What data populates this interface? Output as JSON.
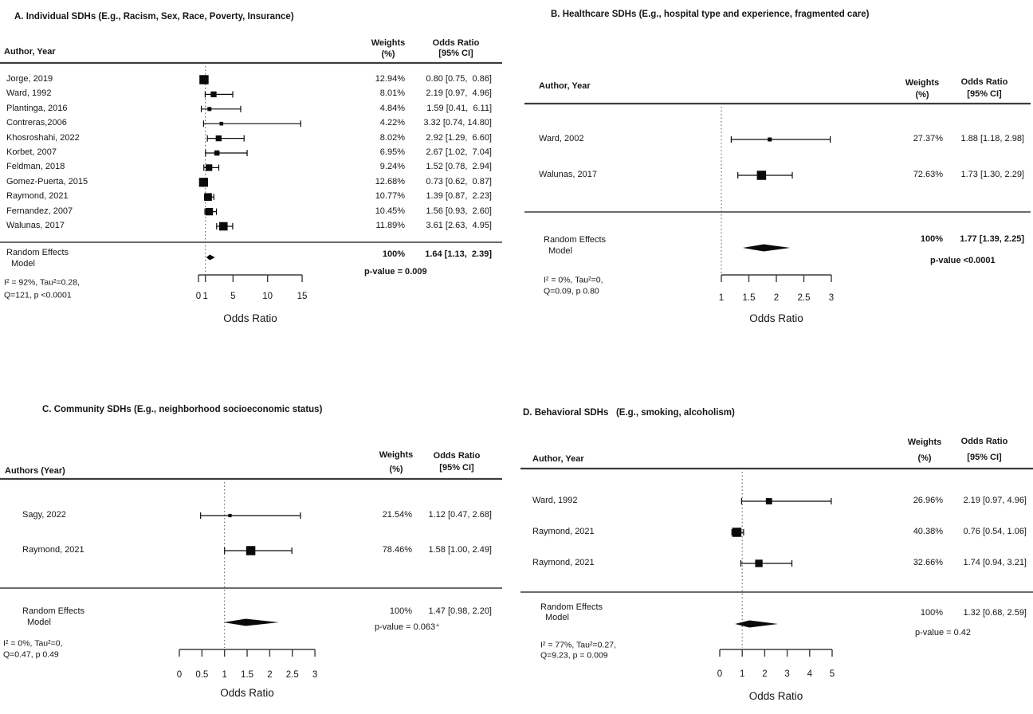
{
  "figure": {
    "background": "#ffffff",
    "text_color": "#161616",
    "line_color": "#3c3c3c",
    "marker_color": "#0a0a0a"
  },
  "chart_data": [
    {
      "type": "forest",
      "panel_id": "A",
      "title": "A. Individual SDHs (E.g., Racism, Sex, Race, Poverty, Insurance)",
      "author_header": "Author, Year",
      "weights_header": [
        "Weights",
        "(%)"
      ],
      "or_header": [
        "Odds Ratio",
        "[95% CI]"
      ],
      "xlabel": "Odds Ratio",
      "ref_line": 1,
      "axis": {
        "range": [
          0,
          15
        ],
        "tick_values": [
          0,
          1,
          5,
          10,
          15
        ],
        "ticks": [
          "0",
          "1",
          "5",
          "10",
          "15"
        ]
      },
      "studies": [
        {
          "label": "Jorge, 2019",
          "weight": "12.94%",
          "weight_value": 12.94,
          "or": 0.8,
          "ci_low": 0.75,
          "ci_high": 0.86,
          "or_text": "0.80 [0.75,  0.86]"
        },
        {
          "label": "Ward, 1992",
          "weight": "8.01%",
          "weight_value": 8.01,
          "or": 2.19,
          "ci_low": 0.97,
          "ci_high": 4.96,
          "or_text": "2.19 [0.97,  4.96]"
        },
        {
          "label": "Plantinga, 2016",
          "weight": "4.84%",
          "weight_value": 4.84,
          "or": 1.59,
          "ci_low": 0.41,
          "ci_high": 6.11,
          "or_text": "1.59 [0.41,  6.11]"
        },
        {
          "label": "Contreras,2006",
          "weight": "4.22%",
          "weight_value": 4.22,
          "or": 3.32,
          "ci_low": 0.74,
          "ci_high": 14.8,
          "or_text": "3.32 [0.74, 14.80]"
        },
        {
          "label": "Khosroshahi, 2022",
          "weight": "8.02%",
          "weight_value": 8.02,
          "or": 2.92,
          "ci_low": 1.29,
          "ci_high": 6.6,
          "or_text": "2.92 [1.29,  6.60]"
        },
        {
          "label": "Korbet, 2007",
          "weight": "6.95%",
          "weight_value": 6.95,
          "or": 2.67,
          "ci_low": 1.02,
          "ci_high": 7.04,
          "or_text": "2.67 [1.02,  7.04]"
        },
        {
          "label": "Feldman, 2018",
          "weight": "9.24%",
          "weight_value": 9.24,
          "or": 1.52,
          "ci_low": 0.78,
          "ci_high": 2.94,
          "or_text": "1.52 [0.78,  2.94]"
        },
        {
          "label": "Gomez-Puerta, 2015",
          "weight": "12.68%",
          "weight_value": 12.68,
          "or": 0.73,
          "ci_low": 0.62,
          "ci_high": 0.87,
          "or_text": "0.73 [0.62,  0.87]"
        },
        {
          "label": "Raymond, 2021",
          "weight": "10.77%",
          "weight_value": 10.77,
          "or": 1.39,
          "ci_low": 0.87,
          "ci_high": 2.23,
          "or_text": "1.39 [0.87,  2.23]"
        },
        {
          "label": "Fernandez, 2007",
          "weight": "10.45%",
          "weight_value": 10.45,
          "or": 1.56,
          "ci_low": 0.93,
          "ci_high": 2.6,
          "or_text": "1.56 [0.93,  2.60]"
        },
        {
          "label": "Walunas, 2017",
          "weight": "11.89%",
          "weight_value": 11.89,
          "or": 3.61,
          "ci_low": 2.63,
          "ci_high": 4.95,
          "or_text": "3.61 [2.63,  4.95]"
        }
      ],
      "summary": {
        "label_lines": [
          "Random Effects",
          "Model"
        ],
        "weight": "100%",
        "or": 1.64,
        "ci_low": 1.13,
        "ci_high": 2.39,
        "or_text": "1.64 [1.13,  2.39]",
        "p_value": "p-value = 0.009",
        "bold": true
      },
      "heterogeneity": [
        "I² = 92%, Tau²=0.28,",
        "Q=121, p <0.0001"
      ]
    },
    {
      "type": "forest",
      "panel_id": "B",
      "title": "B. Healthcare SDHs (E.g., hospital type and experience, fragmented care)",
      "author_header": "Author, Year",
      "weights_header": [
        "Weights",
        "(%)"
      ],
      "or_header": [
        "Odds Ratio",
        "[95% CI]"
      ],
      "xlabel": "Odds Ratio",
      "ref_line": 1,
      "axis": {
        "range": [
          1,
          3
        ],
        "tick_values": [
          1,
          1.5,
          2,
          2.5,
          3
        ],
        "ticks": [
          "1",
          "1.5",
          "2",
          "2.5",
          "3"
        ]
      },
      "studies": [
        {
          "label": "Ward, 2002",
          "weight": "27.37%",
          "weight_value": 27.37,
          "or": 1.88,
          "ci_low": 1.18,
          "ci_high": 2.98,
          "or_text": "1.88 [1.18, 2.98]"
        },
        {
          "label": "Walunas, 2017",
          "weight": "72.63%",
          "weight_value": 72.63,
          "or": 1.73,
          "ci_low": 1.3,
          "ci_high": 2.29,
          "or_text": "1.73 [1.30, 2.29]"
        }
      ],
      "summary": {
        "label_lines": [
          "Random Effects",
          "Model"
        ],
        "weight": "100%",
        "or": 1.77,
        "ci_low": 1.39,
        "ci_high": 2.25,
        "or_text": "1.77 [1.39, 2.25]",
        "p_value": "p-value <0.0001",
        "bold": true
      },
      "heterogeneity": [
        "I² = 0%, Tau²=0,",
        "Q=0.09, p 0.80"
      ]
    },
    {
      "type": "forest",
      "panel_id": "C",
      "title": "C. Community SDHs (E.g., neighborhood socioeconomic status)",
      "author_header": "Authors (Year)",
      "weights_header": [
        "Weights",
        "(%)"
      ],
      "or_header": [
        "Odds Ratio",
        "[95% CI]"
      ],
      "xlabel": "Odds Ratio",
      "ref_line": 1,
      "axis": {
        "range": [
          0,
          3
        ],
        "tick_values": [
          0,
          0.5,
          1,
          1.5,
          2,
          2.5,
          3
        ],
        "ticks": [
          "0",
          "0.5",
          "1",
          "1.5",
          "2",
          "2.5",
          "3"
        ]
      },
      "studies": [
        {
          "label": "Sagy, 2022",
          "weight": "21.54%",
          "weight_value": 21.54,
          "or": 1.12,
          "ci_low": 0.47,
          "ci_high": 2.68,
          "or_text": "1.12 [0.47, 2.68]"
        },
        {
          "label": "Raymond, 2021",
          "weight": "78.46%",
          "weight_value": 78.46,
          "or": 1.58,
          "ci_low": 1.0,
          "ci_high": 2.49,
          "or_text": "1.58 [1.00, 2.49]"
        }
      ],
      "summary": {
        "label_lines": [
          "Random Effects",
          "Model"
        ],
        "weight": "100%",
        "or": 1.47,
        "ci_low": 0.98,
        "ci_high": 2.2,
        "or_text": "1.47 [0.98, 2.20]",
        "p_value": "p-value = 0.063⁺",
        "bold": false
      },
      "heterogeneity": [
        "I² = 0%, Tau²=0,",
        "Q=0.47, p 0.49"
      ]
    },
    {
      "type": "forest",
      "panel_id": "D",
      "title": "D. Behavioral SDHs   (E.g., smoking, alcoholism)",
      "author_header": "Author, Year",
      "weights_header": [
        "Weights",
        "(%)"
      ],
      "or_header": [
        "Odds Ratio",
        "[95% CI]"
      ],
      "xlabel": "Odds Ratio",
      "ref_line": 1,
      "axis": {
        "range": [
          0,
          5
        ],
        "tick_values": [
          0,
          1,
          2,
          3,
          4,
          5
        ],
        "ticks": [
          "0",
          "1",
          "2",
          "3",
          "4",
          "5"
        ]
      },
      "studies": [
        {
          "label": "Ward, 1992",
          "weight": "26.96%",
          "weight_value": 26.96,
          "or": 2.19,
          "ci_low": 0.97,
          "ci_high": 4.96,
          "or_text": "2.19 [0.97, 4.96]"
        },
        {
          "label": "Raymond, 2021",
          "weight": "40.38%",
          "weight_value": 40.38,
          "or": 0.76,
          "ci_low": 0.54,
          "ci_high": 1.06,
          "or_text": "0.76 [0.54, 1.06]"
        },
        {
          "label": "Raymond, 2021",
          "weight": "32.66%",
          "weight_value": 32.66,
          "or": 1.74,
          "ci_low": 0.94,
          "ci_high": 3.21,
          "or_text": "1.74 [0.94, 3.21]"
        }
      ],
      "summary": {
        "label_lines": [
          "Random Effects",
          "Model"
        ],
        "weight": "100%",
        "or": 1.32,
        "ci_low": 0.68,
        "ci_high": 2.59,
        "or_text": "1.32 [0.68, 2.59]",
        "p_value": "p-value = 0.42",
        "bold": false
      },
      "heterogeneity": [
        "I² = 77%, Tau²=0.27,",
        "Q=9.23, p = 0.009"
      ]
    }
  ]
}
